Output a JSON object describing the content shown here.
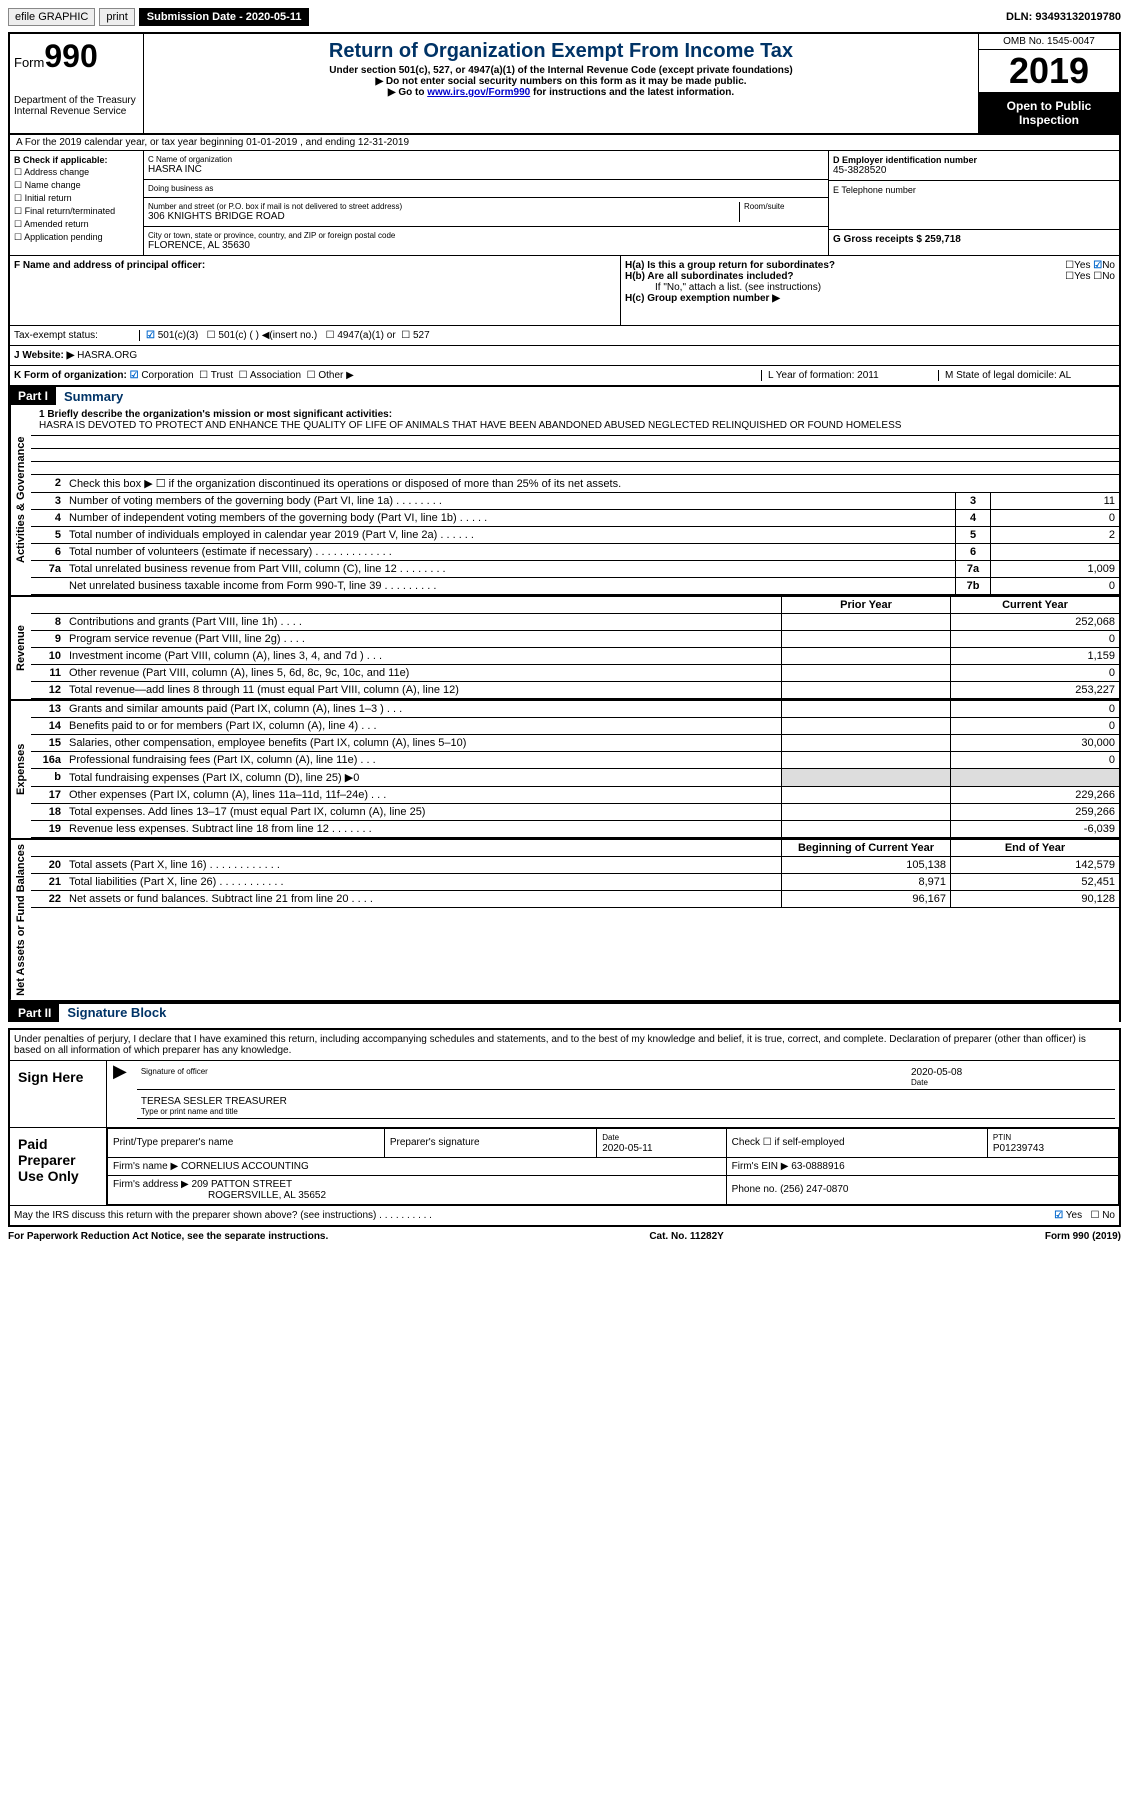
{
  "topbar": {
    "efile": "efile GRAPHIC",
    "print": "print",
    "submission_label": "Submission Date - 2020-05-11",
    "dln": "DLN: 93493132019780"
  },
  "header": {
    "form_label": "Form",
    "form_number": "990",
    "dept": "Department of the Treasury\nInternal Revenue Service",
    "title": "Return of Organization Exempt From Income Tax",
    "subtitle": "Under section 501(c), 527, or 4947(a)(1) of the Internal Revenue Code (except private foundations)",
    "note1": "▶ Do not enter social security numbers on this form as it may be made public.",
    "note2_prefix": "▶ Go to ",
    "note2_link": "www.irs.gov/Form990",
    "note2_suffix": " for instructions and the latest information.",
    "omb": "OMB No. 1545-0047",
    "year": "2019",
    "inspection": "Open to Public Inspection"
  },
  "line_a": "A For the 2019 calendar year, or tax year beginning 01-01-2019    , and ending 12-31-2019",
  "section_b": {
    "label": "B Check if applicable:",
    "opts": [
      "Address change",
      "Name change",
      "Initial return",
      "Final return/terminated",
      "Amended return",
      "Application pending"
    ]
  },
  "section_c": {
    "name_label": "C Name of organization",
    "name": "HASRA INC",
    "dba_label": "Doing business as",
    "addr_label": "Number and street (or P.O. box if mail is not delivered to street address)",
    "room_label": "Room/suite",
    "addr": "306 KNIGHTS BRIDGE ROAD",
    "city_label": "City or town, state or province, country, and ZIP or foreign postal code",
    "city": "FLORENCE, AL  35630"
  },
  "section_de": {
    "d_label": "D Employer identification number",
    "ein": "45-3828520",
    "e_label": "E Telephone number",
    "g_label": "G Gross receipts $ 259,718"
  },
  "section_fh": {
    "f_label": "F  Name and address of principal officer:",
    "h_a": "H(a)  Is this a group return for subordinates?",
    "h_b": "H(b)  Are all subordinates included?",
    "h_note": "If \"No,\" attach a list. (see instructions)",
    "h_c": "H(c)  Group exemption number ▶",
    "yes": "Yes",
    "no": "No"
  },
  "tax_exempt": {
    "label": "Tax-exempt status:",
    "opt1": "501(c)(3)",
    "opt2": "501(c) (  ) ◀(insert no.)",
    "opt3": "4947(a)(1) or",
    "opt4": "527"
  },
  "website": {
    "label": "J   Website: ▶",
    "value": "HASRA.ORG"
  },
  "line_k": {
    "label": "K Form of organization:",
    "corp": "Corporation",
    "trust": "Trust",
    "assoc": "Association",
    "other": "Other ▶",
    "l_label": "L Year of formation: 2011",
    "m_label": "M State of legal domicile: AL"
  },
  "part1": {
    "header": "Part I",
    "title": "Summary",
    "line1_label": "1 Briefly describe the organization's mission or most significant activities:",
    "line1_text": "HASRA IS DEVOTED TO PROTECT AND ENHANCE THE QUALITY OF LIFE OF ANIMALS THAT HAVE BEEN ABANDONED ABUSED NEGLECTED RELINQUISHED OR FOUND HOMELESS",
    "line2": "Check this box ▶ ☐  if the organization discontinued its operations or disposed of more than 25% of its net assets.",
    "rows_activities": [
      {
        "n": "3",
        "d": "Number of voting members of the governing body (Part VI, line 1a)  .  .  .  .  .  .  .  .",
        "box": "3",
        "val": "11"
      },
      {
        "n": "4",
        "d": "Number of independent voting members of the governing body (Part VI, line 1b)   .  .  .  .  .",
        "box": "4",
        "val": "0"
      },
      {
        "n": "5",
        "d": "Total number of individuals employed in calendar year 2019 (Part V, line 2a)   .  .  .  .  .  .",
        "box": "5",
        "val": "2"
      },
      {
        "n": "6",
        "d": "Total number of volunteers (estimate if necessary)   .  .  .  .  .  .  .  .  .  .  .  .  .",
        "box": "6",
        "val": ""
      },
      {
        "n": "7a",
        "d": "Total unrelated business revenue from Part VIII, column (C), line 12   .  .  .  .  .  .  .  .",
        "box": "7a",
        "val": "1,009"
      },
      {
        "n": "",
        "d": "Net unrelated business taxable income from Form 990-T, line 39   .  .  .  .  .  .  .  .  .",
        "box": "7b",
        "val": "0"
      }
    ],
    "col_headers": {
      "prior": "Prior Year",
      "current": "Current Year"
    },
    "rows_revenue": [
      {
        "n": "8",
        "d": "Contributions and grants (Part VIII, line 1h)   .  .  .  .",
        "prior": "",
        "cur": "252,068"
      },
      {
        "n": "9",
        "d": "Program service revenue (Part VIII, line 2g)   .  .  .  .",
        "prior": "",
        "cur": "0"
      },
      {
        "n": "10",
        "d": "Investment income (Part VIII, column (A), lines 3, 4, and 7d )   .  .  .",
        "prior": "",
        "cur": "1,159"
      },
      {
        "n": "11",
        "d": "Other revenue (Part VIII, column (A), lines 5, 6d, 8c, 9c, 10c, and 11e)",
        "prior": "",
        "cur": "0"
      },
      {
        "n": "12",
        "d": "Total revenue—add lines 8 through 11 (must equal Part VIII, column (A), line 12)",
        "prior": "",
        "cur": "253,227"
      }
    ],
    "rows_expenses": [
      {
        "n": "13",
        "d": "Grants and similar amounts paid (Part IX, column (A), lines 1–3 )   .  .  .",
        "prior": "",
        "cur": "0"
      },
      {
        "n": "14",
        "d": "Benefits paid to or for members (Part IX, column (A), line 4)   .  .  .",
        "prior": "",
        "cur": "0"
      },
      {
        "n": "15",
        "d": "Salaries, other compensation, employee benefits (Part IX, column (A), lines 5–10)",
        "prior": "",
        "cur": "30,000"
      },
      {
        "n": "16a",
        "d": "Professional fundraising fees (Part IX, column (A), line 11e)   .  .  .",
        "prior": "",
        "cur": "0"
      },
      {
        "n": "b",
        "d": "Total fundraising expenses (Part IX, column (D), line 25) ▶0",
        "prior": "shaded",
        "cur": "shaded"
      },
      {
        "n": "17",
        "d": "Other expenses (Part IX, column (A), lines 11a–11d, 11f–24e)   .  .  .",
        "prior": "",
        "cur": "229,266"
      },
      {
        "n": "18",
        "d": "Total expenses. Add lines 13–17 (must equal Part IX, column (A), line 25)",
        "prior": "",
        "cur": "259,266"
      },
      {
        "n": "19",
        "d": "Revenue less expenses. Subtract line 18 from line 12   .  .  .  .  .  .  .",
        "prior": "",
        "cur": "-6,039"
      }
    ],
    "col_headers2": {
      "begin": "Beginning of Current Year",
      "end": "End of Year"
    },
    "rows_net": [
      {
        "n": "20",
        "d": "Total assets (Part X, line 16)   .  .  .  .  .  .  .  .  .  .  .  .",
        "begin": "105,138",
        "end": "142,579"
      },
      {
        "n": "21",
        "d": "Total liabilities (Part X, line 26)   .  .  .  .  .  .  .  .  .  .  .",
        "begin": "8,971",
        "end": "52,451"
      },
      {
        "n": "22",
        "d": "Net assets or fund balances. Subtract line 21 from line 20   .  .  .  .",
        "begin": "96,167",
        "end": "90,128"
      }
    ]
  },
  "sidelabels": {
    "activities": "Activities & Governance",
    "revenue": "Revenue",
    "expenses": "Expenses",
    "net": "Net Assets or Fund Balances"
  },
  "part2": {
    "header": "Part II",
    "title": "Signature Block",
    "penalty": "Under penalties of perjury, I declare that I have examined this return, including accompanying schedules and statements, and to the best of my knowledge and belief, it is true, correct, and complete. Declaration of preparer (other than officer) is based on all information of which preparer has any knowledge."
  },
  "sign": {
    "label": "Sign Here",
    "sig_line": "Signature of officer",
    "date_label": "Date",
    "date_val": "2020-05-08",
    "name": "TERESA SESLER  TREASURER",
    "name_sub": "Type or print name and title"
  },
  "paid": {
    "label": "Paid Preparer Use Only",
    "col1": "Print/Type preparer's name",
    "col2": "Preparer's signature",
    "col3_label": "Date",
    "col3_val": "2020-05-11",
    "col4": "Check ☐ if self-employed",
    "col5_label": "PTIN",
    "col5_val": "P01239743",
    "firm_name_label": "Firm's name     ▶",
    "firm_name": "CORNELIUS ACCOUNTING",
    "firm_ein_label": "Firm's EIN ▶",
    "firm_ein": "63-0888916",
    "firm_addr_label": "Firm's address ▶",
    "firm_addr1": "209 PATTON STREET",
    "firm_addr2": "ROGERSVILLE, AL  35652",
    "phone_label": "Phone no.",
    "phone": "(256) 247-0870",
    "discuss": "May the IRS discuss this return with the preparer shown above? (see instructions)   .  .  .  .  .  .  .  .  .  .",
    "yes": "Yes",
    "no": "No"
  },
  "footer": {
    "left": "For Paperwork Reduction Act Notice, see the separate instructions.",
    "mid": "Cat. No. 11282Y",
    "right": "Form 990 (2019)"
  }
}
